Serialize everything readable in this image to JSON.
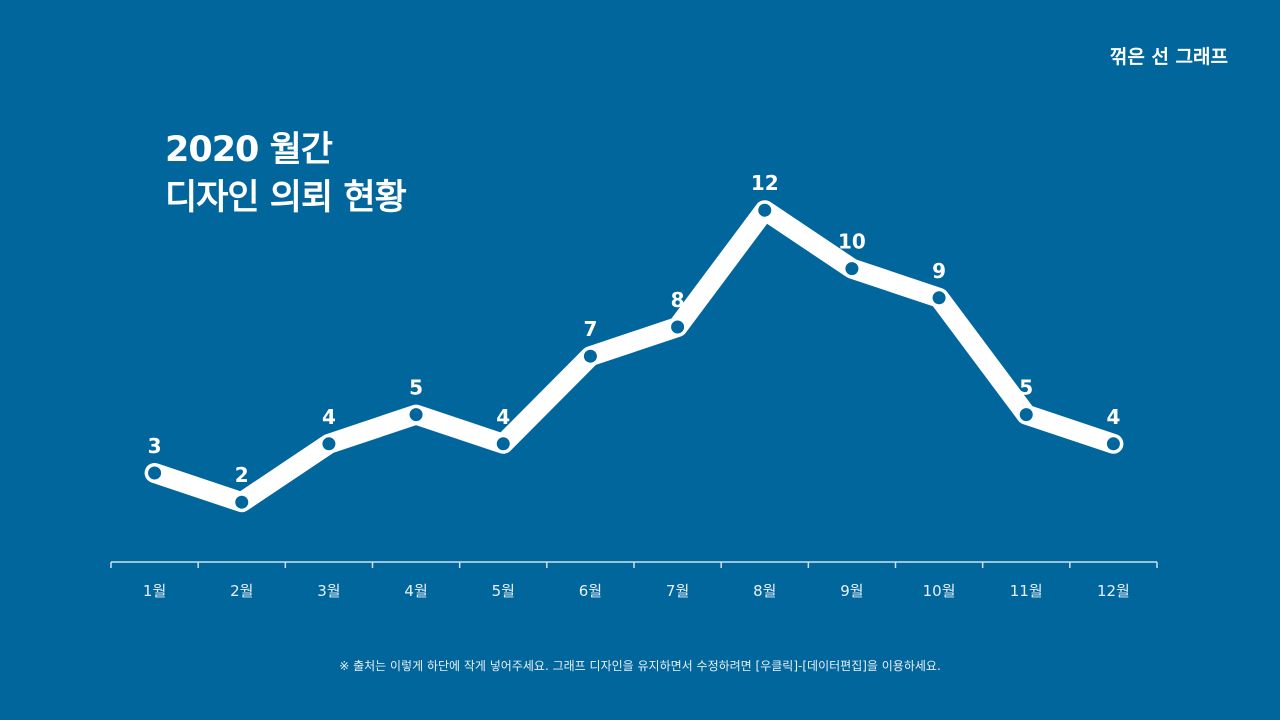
{
  "header": {
    "tag": "꺾은 선 그래프"
  },
  "chart_data": {
    "type": "line",
    "title": "2020 월간",
    "subtitle": "디자인 의뢰 현황",
    "categories": [
      "1월",
      "2월",
      "3월",
      "4월",
      "5월",
      "6월",
      "7월",
      "8월",
      "9월",
      "10월",
      "11월",
      "12월"
    ],
    "series": [
      {
        "name": "디자인 의뢰",
        "values": [
          3,
          2,
          4,
          5,
          4,
          7,
          8,
          12,
          10,
          9,
          5,
          4
        ]
      }
    ],
    "ylim": [
      0,
      13
    ],
    "xlabel": "",
    "ylabel": "",
    "grid": false,
    "colors": {
      "background": "#01669c",
      "line": "#ffffff",
      "marker": "#01669c"
    }
  },
  "footer": {
    "note": "※ 출처는 이렇게 하단에 작게 넣어주세요. 그래프 디자인을 유지하면서 수정하려면 [우클릭]-[데이터편집]을 이용하세요."
  }
}
